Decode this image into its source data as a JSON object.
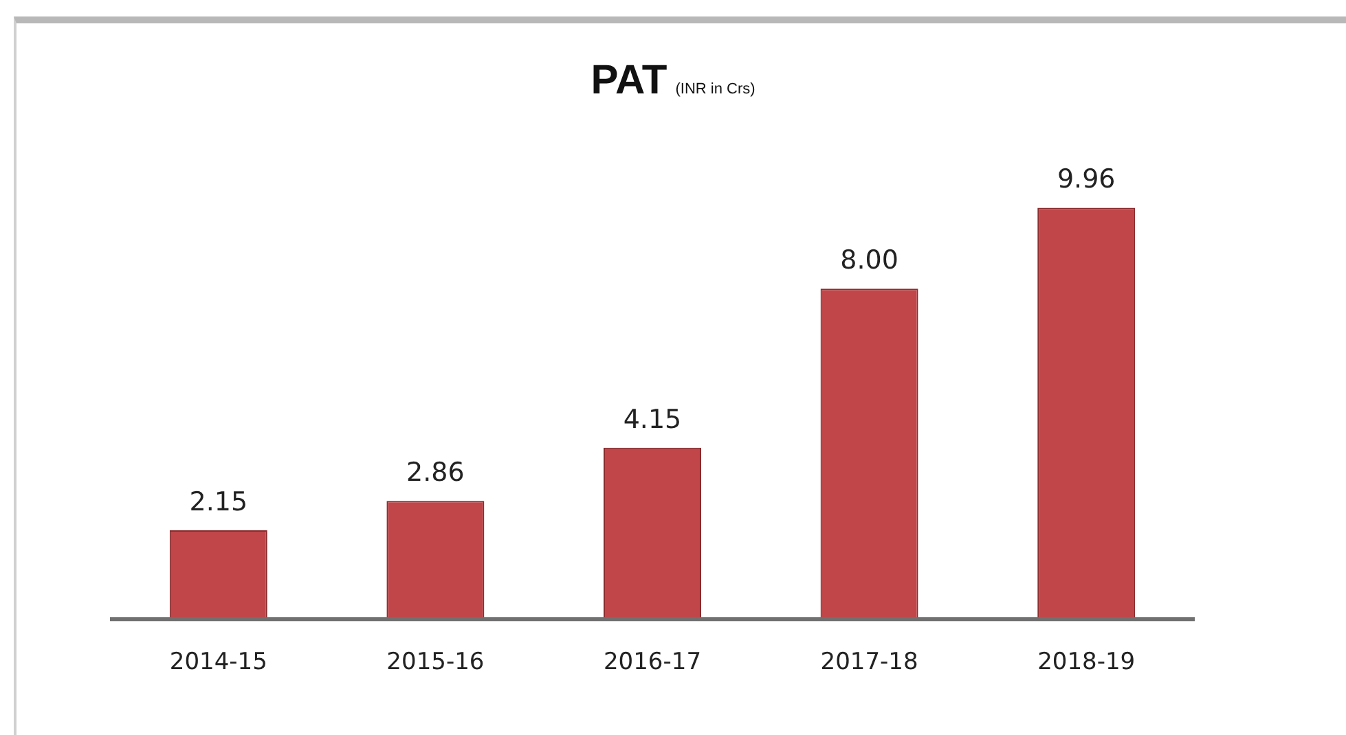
{
  "chart_data": {
    "type": "bar",
    "title": "PAT",
    "subtitle": "(INR in Crs)",
    "categories": [
      "2014-15",
      "2015-16",
      "2016-17",
      "2017-18",
      "2018-19"
    ],
    "values": [
      2.15,
      2.86,
      4.15,
      8.0,
      9.96
    ],
    "value_labels": [
      "2.15",
      "2.86",
      "4.15",
      "8.00",
      "9.96"
    ],
    "color": "#c0464a",
    "grid": false,
    "legend": false
  }
}
